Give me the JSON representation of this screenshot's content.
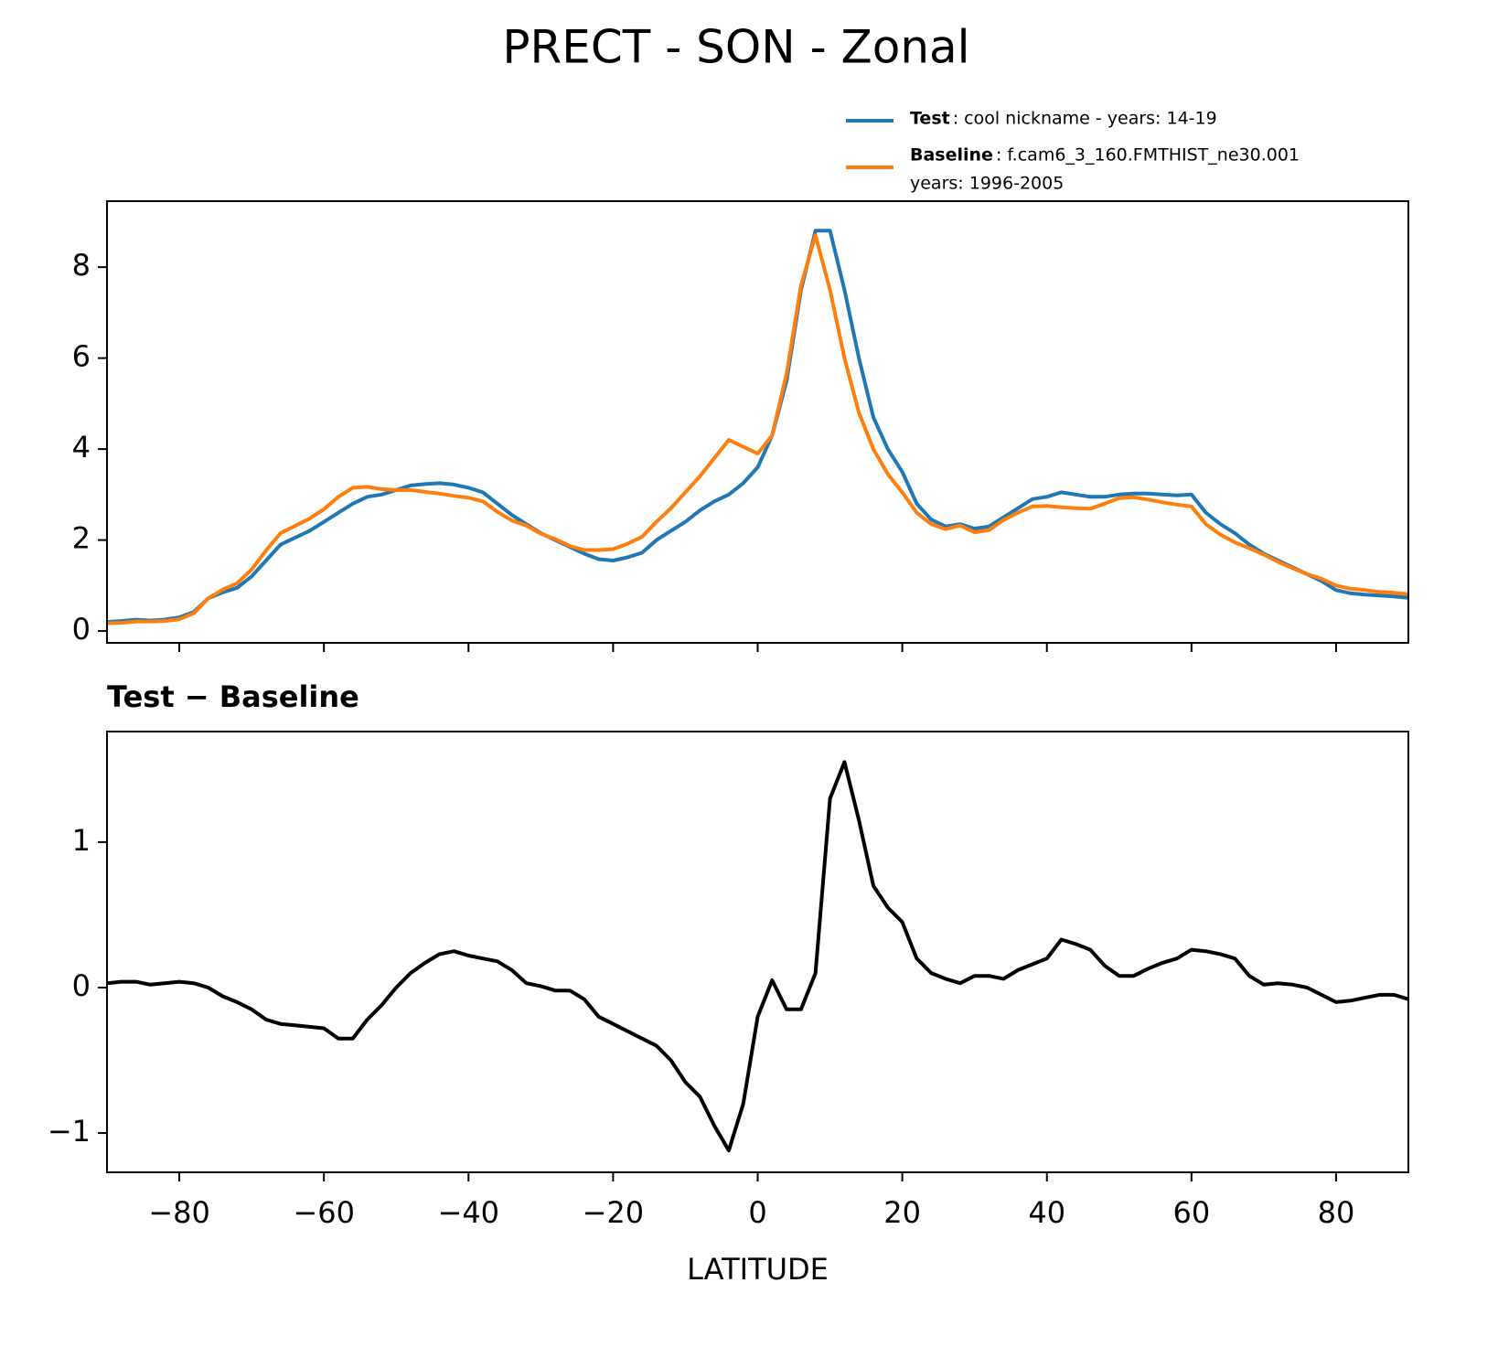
{
  "title": "PRECT - SON - Zonal",
  "chart_data": [
    {
      "type": "line",
      "x": [
        -90,
        -88,
        -86,
        -84,
        -82,
        -80,
        -78,
        -76,
        -74,
        -72,
        -70,
        -68,
        -66,
        -64,
        -62,
        -60,
        -58,
        -56,
        -54,
        -52,
        -50,
        -48,
        -46,
        -44,
        -42,
        -40,
        -38,
        -36,
        -34,
        -32,
        -30,
        -28,
        -26,
        -24,
        -22,
        -20,
        -18,
        -16,
        -14,
        -12,
        -10,
        -8,
        -6,
        -4,
        -2,
        0,
        2,
        4,
        6,
        8,
        10,
        12,
        14,
        16,
        18,
        20,
        22,
        24,
        26,
        28,
        30,
        32,
        34,
        36,
        38,
        40,
        42,
        44,
        46,
        48,
        50,
        52,
        54,
        56,
        58,
        60,
        62,
        64,
        66,
        68,
        70,
        72,
        74,
        76,
        78,
        80,
        82,
        84,
        86,
        88,
        90
      ],
      "series": [
        {
          "name": "Test",
          "description": [
            ": cool nickname - years: 14-19"
          ],
          "color": "#1f77b4",
          "values": [
            0.2,
            0.22,
            0.25,
            0.23,
            0.25,
            0.3,
            0.42,
            0.72,
            0.85,
            0.95,
            1.2,
            1.55,
            1.9,
            2.05,
            2.2,
            2.4,
            2.6,
            2.8,
            2.95,
            3.0,
            3.1,
            3.2,
            3.23,
            3.25,
            3.22,
            3.15,
            3.05,
            2.8,
            2.55,
            2.35,
            2.15,
            2.0,
            1.85,
            1.7,
            1.58,
            1.55,
            1.62,
            1.72,
            2.0,
            2.2,
            2.4,
            2.65,
            2.85,
            3.0,
            3.25,
            3.6,
            4.3,
            5.5,
            7.5,
            8.8,
            8.8,
            7.5,
            6.0,
            4.7,
            4.0,
            3.5,
            2.8,
            2.45,
            2.3,
            2.35,
            2.25,
            2.3,
            2.5,
            2.7,
            2.9,
            2.95,
            3.05,
            3.0,
            2.95,
            2.95,
            3.0,
            3.02,
            3.02,
            3.0,
            2.98,
            3.0,
            2.6,
            2.35,
            2.15,
            1.9,
            1.7,
            1.55,
            1.4,
            1.25,
            1.1,
            0.9,
            0.83,
            0.8,
            0.78,
            0.76,
            0.73
          ]
        },
        {
          "name": "Baseline",
          "description": [
            ": f.cam6_3_160.FMTHIST_ne30.001",
            "years: 1996-2005"
          ],
          "color": "#ff7f0e",
          "values": [
            0.17,
            0.18,
            0.21,
            0.21,
            0.22,
            0.26,
            0.39,
            0.72,
            0.91,
            1.05,
            1.35,
            1.77,
            2.15,
            2.31,
            2.47,
            2.68,
            2.95,
            3.15,
            3.17,
            3.12,
            3.1,
            3.1,
            3.06,
            3.02,
            2.97,
            2.93,
            2.85,
            2.62,
            2.43,
            2.32,
            2.14,
            2.02,
            1.87,
            1.78,
            1.78,
            1.8,
            1.92,
            2.07,
            2.4,
            2.7,
            3.05,
            3.4,
            3.8,
            4.2,
            4.05,
            3.9,
            4.3,
            5.65,
            7.6,
            8.7,
            7.5,
            6.0,
            4.8,
            4.0,
            3.45,
            3.05,
            2.6,
            2.35,
            2.24,
            2.32,
            2.17,
            2.22,
            2.44,
            2.6,
            2.74,
            2.75,
            2.72,
            2.7,
            2.69,
            2.8,
            2.92,
            2.94,
            2.89,
            2.83,
            2.78,
            2.74,
            2.35,
            2.12,
            1.95,
            1.82,
            1.68,
            1.52,
            1.38,
            1.25,
            1.15,
            1.0,
            0.93,
            0.9,
            0.86,
            0.84,
            0.81
          ]
        }
      ],
      "xlim": [
        -90,
        90
      ],
      "xticks": [
        -80,
        -60,
        -40,
        -20,
        0,
        20,
        40,
        60,
        80
      ],
      "ylim": [
        -0.26,
        9.45
      ],
      "yticks": [
        0,
        2,
        4,
        6,
        8
      ]
    },
    {
      "type": "line",
      "title": "Test − Baseline",
      "xlabel": "LATITUDE",
      "x": [
        -90,
        -88,
        -86,
        -84,
        -82,
        -80,
        -78,
        -76,
        -74,
        -72,
        -70,
        -68,
        -66,
        -64,
        -62,
        -60,
        -58,
        -56,
        -54,
        -52,
        -50,
        -48,
        -46,
        -44,
        -42,
        -40,
        -38,
        -36,
        -34,
        -32,
        -30,
        -28,
        -26,
        -24,
        -22,
        -20,
        -18,
        -16,
        -14,
        -12,
        -10,
        -8,
        -6,
        -4,
        -2,
        0,
        2,
        4,
        6,
        8,
        10,
        12,
        14,
        16,
        18,
        20,
        22,
        24,
        26,
        28,
        30,
        32,
        34,
        36,
        38,
        40,
        42,
        44,
        46,
        48,
        50,
        52,
        54,
        56,
        58,
        60,
        62,
        64,
        66,
        68,
        70,
        72,
        74,
        76,
        78,
        80,
        82,
        84,
        86,
        88,
        90
      ],
      "series": [
        {
          "color": "#000000",
          "values": [
            0.03,
            0.04,
            0.04,
            0.02,
            0.03,
            0.04,
            0.03,
            0.0,
            -0.06,
            -0.1,
            -0.15,
            -0.22,
            -0.25,
            -0.26,
            -0.27,
            -0.28,
            -0.35,
            -0.35,
            -0.22,
            -0.12,
            0.0,
            0.1,
            0.17,
            0.23,
            0.25,
            0.22,
            0.2,
            0.18,
            0.12,
            0.03,
            0.01,
            -0.02,
            -0.02,
            -0.08,
            -0.2,
            -0.25,
            -0.3,
            -0.35,
            -0.4,
            -0.5,
            -0.65,
            -0.75,
            -0.95,
            -1.12,
            -0.8,
            -0.2,
            0.05,
            -0.15,
            -0.15,
            0.1,
            1.3,
            1.55,
            1.15,
            0.7,
            0.55,
            0.45,
            0.2,
            0.1,
            0.06,
            0.03,
            0.08,
            0.08,
            0.06,
            0.12,
            0.16,
            0.2,
            0.33,
            0.3,
            0.26,
            0.15,
            0.08,
            0.08,
            0.13,
            0.17,
            0.2,
            0.26,
            0.25,
            0.23,
            0.2,
            0.08,
            0.02,
            0.03,
            0.02,
            0.0,
            -0.05,
            -0.1,
            -0.09,
            -0.07,
            -0.05,
            -0.05,
            -0.08
          ]
        }
      ],
      "xlim": [
        -90,
        90
      ],
      "xticks": [
        {
          "value": -80,
          "label": "−80"
        },
        {
          "value": -60,
          "label": "−60"
        },
        {
          "value": -40,
          "label": "−40"
        },
        {
          "value": -20,
          "label": "−20"
        },
        0,
        20,
        40,
        60,
        80
      ],
      "ylim": [
        -1.27,
        1.76
      ],
      "yticks": [
        {
          "value": -1,
          "label": "−1"
        },
        0,
        1
      ]
    }
  ]
}
